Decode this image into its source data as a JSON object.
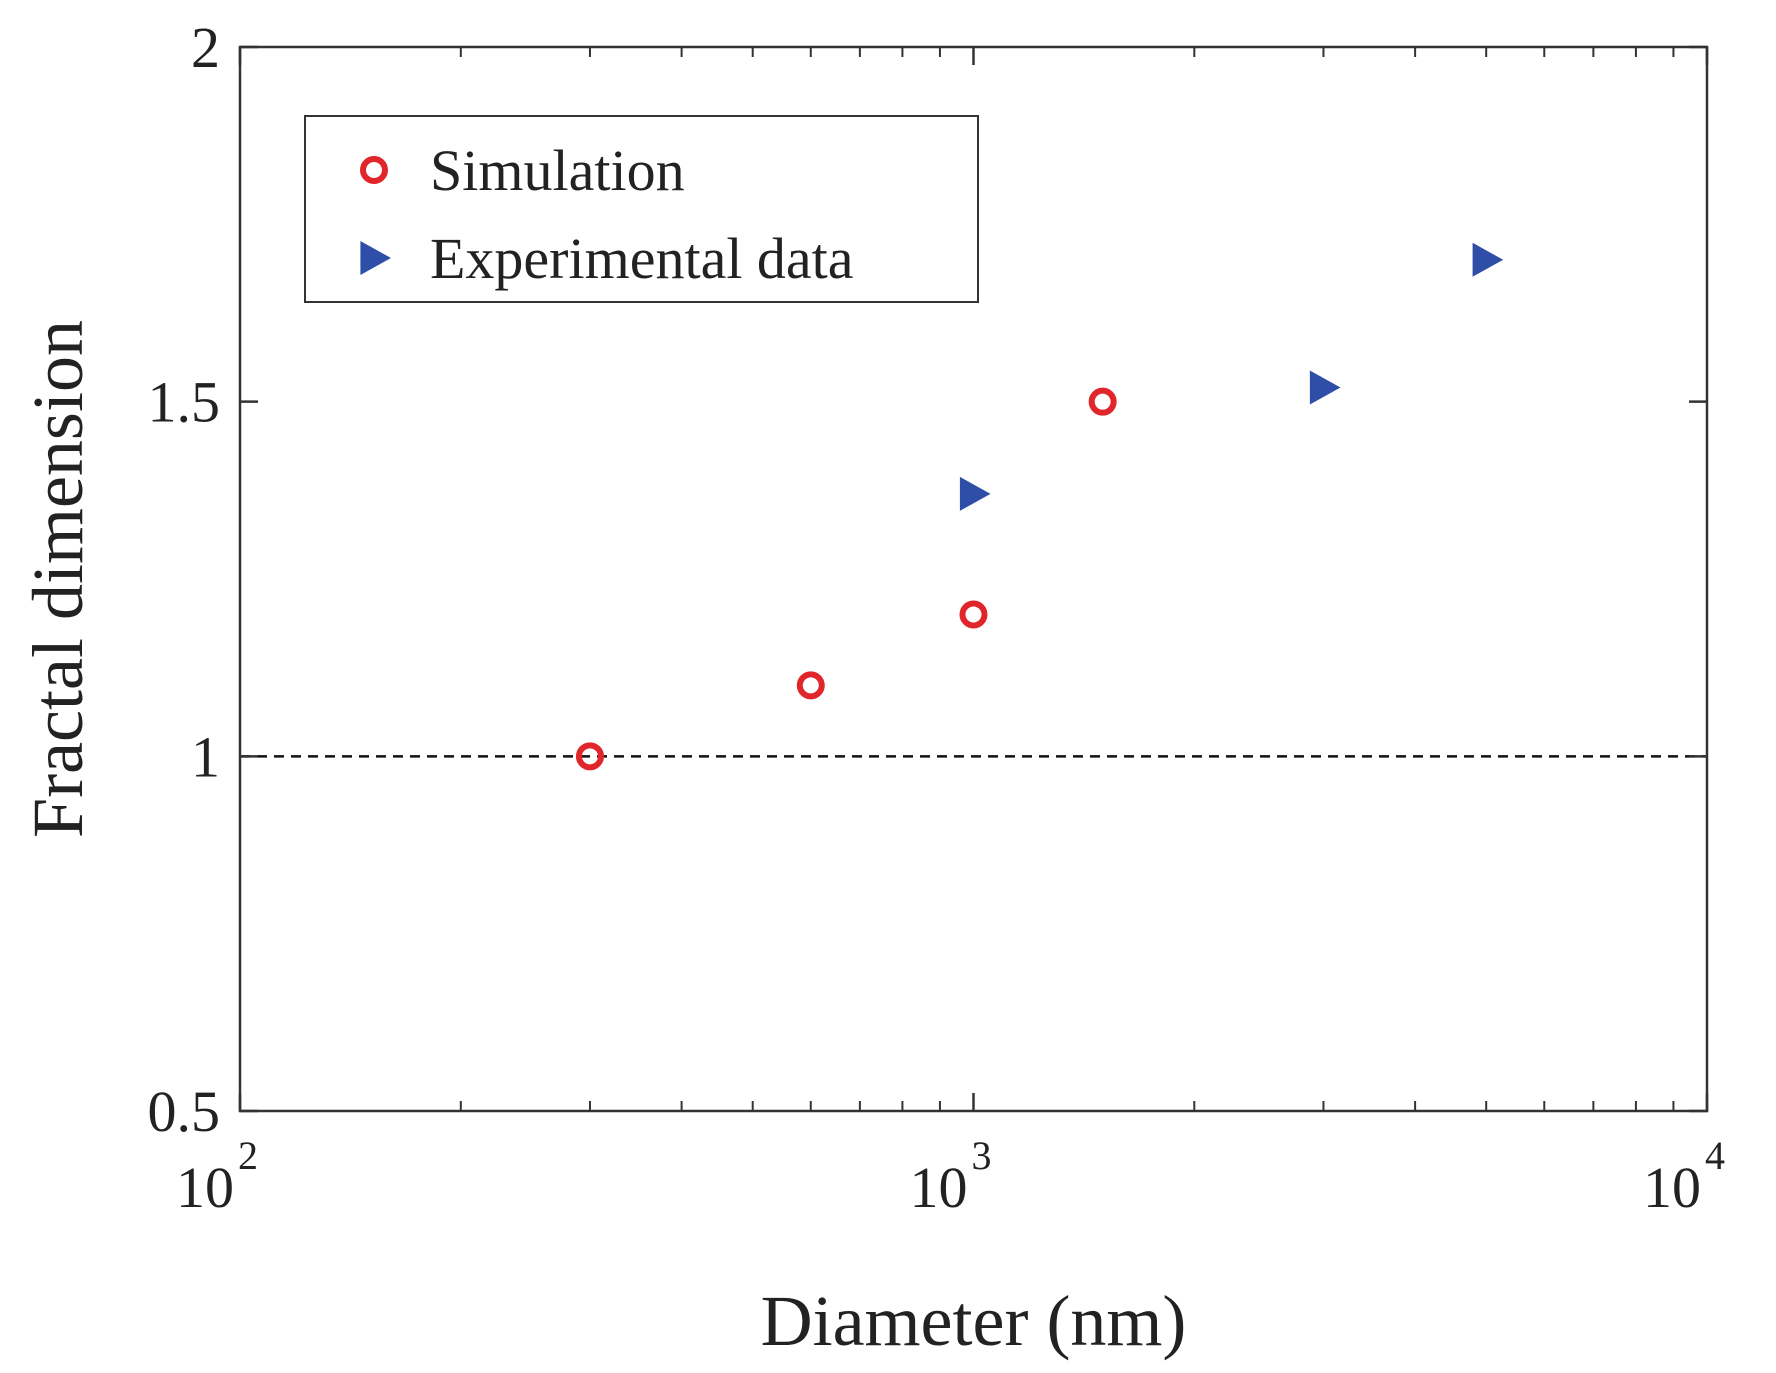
{
  "chart_data": {
    "type": "scatter",
    "xlabel": "Diameter (nm)",
    "ylabel": "Fractal dimension",
    "x_scale": "log",
    "xlim": [
      100,
      10000
    ],
    "ylim": [
      0.5,
      2
    ],
    "x_ticks": [
      {
        "value": 100,
        "base": "10",
        "exp": "2"
      },
      {
        "value": 1000,
        "base": "10",
        "exp": "3"
      },
      {
        "value": 10000,
        "base": "10",
        "exp": "4"
      }
    ],
    "y_ticks": [
      {
        "value": 0.5,
        "label": "0.5"
      },
      {
        "value": 1,
        "label": "1"
      },
      {
        "value": 1.5,
        "label": "1.5"
      },
      {
        "value": 2,
        "label": "2"
      }
    ],
    "grid": false,
    "legend_position": "top-left",
    "reference_line": {
      "y": 1,
      "style": "dashed",
      "color": "#111111"
    },
    "series": [
      {
        "name": "Simulation",
        "marker": "circle",
        "color": "#e0252b",
        "points": [
          {
            "x": 300,
            "y": 1.0
          },
          {
            "x": 600,
            "y": 1.1
          },
          {
            "x": 1000,
            "y": 1.2
          },
          {
            "x": 1500,
            "y": 1.5
          }
        ]
      },
      {
        "name": "Experimental data",
        "marker": "triangle-right",
        "color": "#2f4ea8",
        "points": [
          {
            "x": 1000,
            "y": 1.37
          },
          {
            "x": 3000,
            "y": 1.52
          },
          {
            "x": 5000,
            "y": 1.7
          }
        ]
      }
    ]
  }
}
